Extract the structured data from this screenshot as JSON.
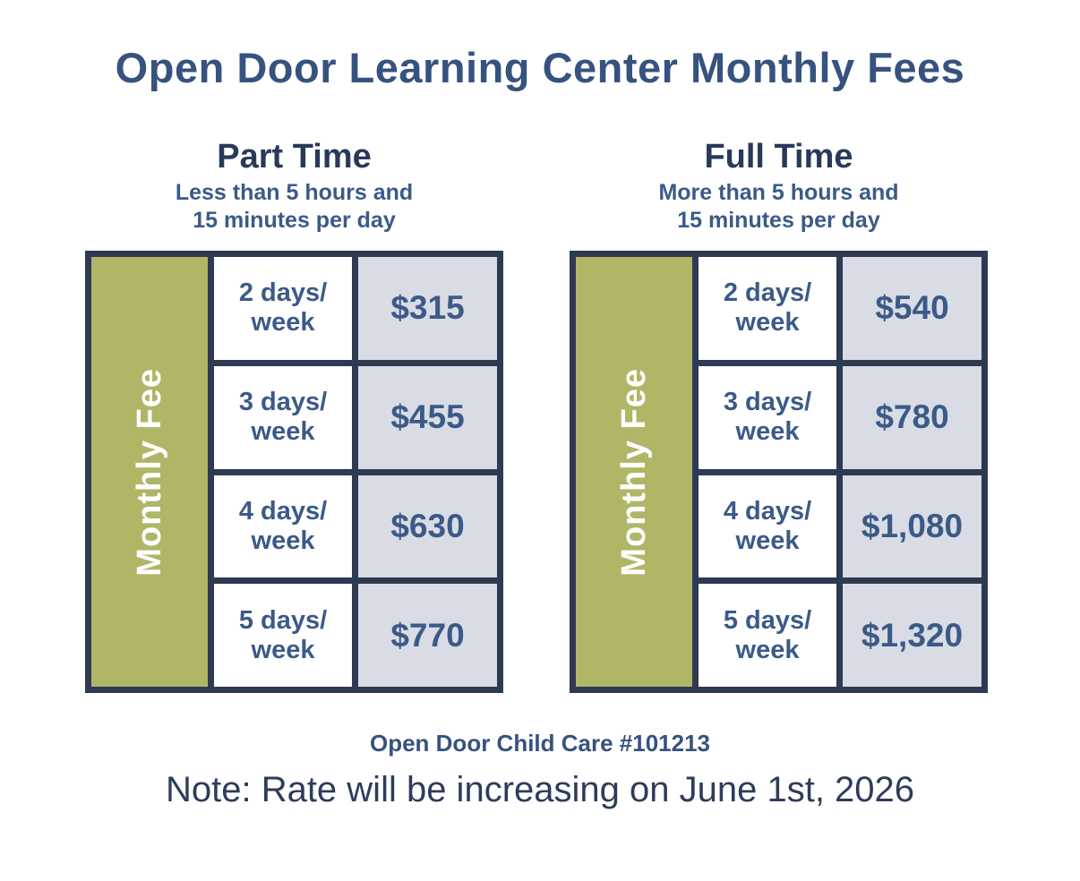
{
  "title": "Open Door Learning Center Monthly Fees",
  "tables": [
    {
      "heading": "Part Time",
      "subtitle_line1": "Less than 5 hours and",
      "subtitle_line2": "15 minutes per day",
      "side_label": "Monthly Fee",
      "rows": [
        {
          "label_line1": "2 days/",
          "label_line2": "week",
          "price": "$315"
        },
        {
          "label_line1": "3 days/",
          "label_line2": "week",
          "price": "$455"
        },
        {
          "label_line1": "4 days/",
          "label_line2": "week",
          "price": "$630"
        },
        {
          "label_line1": "5 days/",
          "label_line2": "week",
          "price": "$770"
        }
      ]
    },
    {
      "heading": "Full Time",
      "subtitle_line1": "More than 5 hours and",
      "subtitle_line2": "15 minutes per day",
      "side_label": "Monthly Fee",
      "rows": [
        {
          "label_line1": "2 days/",
          "label_line2": "week",
          "price": "$540"
        },
        {
          "label_line1": "3 days/",
          "label_line2": "week",
          "price": "$780"
        },
        {
          "label_line1": "4 days/",
          "label_line2": "week",
          "price": "$1,080"
        },
        {
          "label_line1": "5 days/",
          "label_line2": "week",
          "price": "$1,320"
        }
      ]
    }
  ],
  "footer": {
    "license": "Open Door Child Care #101213",
    "note": "Note: Rate will be increasing on June 1st, 2026"
  },
  "colors": {
    "background": "#ffffff",
    "border_navy": "#2d3a52",
    "olive_band": "#b1b566",
    "price_cell_bg": "#d9dce4",
    "title_blue": "#36527f",
    "heading_navy": "#293a58",
    "accent_blue": "#3b5a88",
    "note_navy": "#2d3c5b",
    "side_label_text": "#ffffff"
  },
  "chart_data": [
    {
      "type": "table",
      "title": "Part Time",
      "subtitle": "Less than 5 hours and 15 minutes per day",
      "row_band_label": "Monthly Fee",
      "columns": [
        "Days per week",
        "Monthly fee ($)"
      ],
      "rows": [
        [
          "2 days/week",
          315
        ],
        [
          "3 days/week",
          455
        ],
        [
          "4 days/week",
          630
        ],
        [
          "5 days/week",
          770
        ]
      ]
    },
    {
      "type": "table",
      "title": "Full Time",
      "subtitle": "More than 5 hours and 15 minutes per day",
      "row_band_label": "Monthly Fee",
      "columns": [
        "Days per week",
        "Monthly fee ($)"
      ],
      "rows": [
        [
          "2 days/week",
          540
        ],
        [
          "3 days/week",
          780
        ],
        [
          "4 days/week",
          1080
        ],
        [
          "5 days/week",
          1320
        ]
      ]
    }
  ]
}
